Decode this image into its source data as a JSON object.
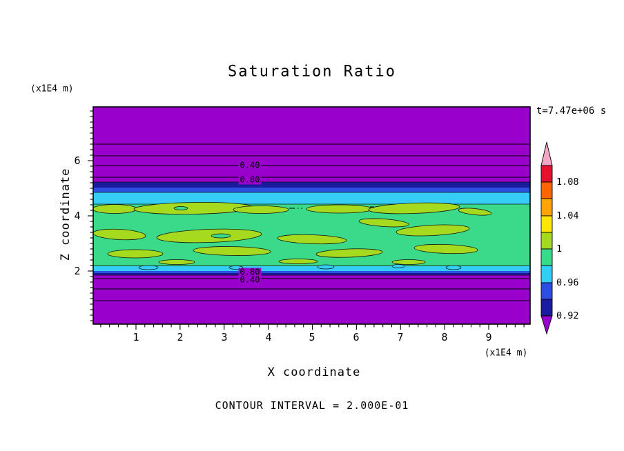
{
  "title": "Saturation Ratio",
  "time_label": "t=7.47e+06 s",
  "axes": {
    "x_label": "X coordinate",
    "y_label": "Z coordinate",
    "x_unit": "(x1E4 m)",
    "y_unit": "(x1E4 m)",
    "x_tick_labels": [
      "1",
      "2",
      "3",
      "4",
      "5",
      "6",
      "7",
      "8",
      "9"
    ],
    "y_tick_labels": [
      "6",
      "4",
      "2"
    ]
  },
  "contour": {
    "interval_label": "CONTOUR INTERVAL = 2.000E-01",
    "inline_labels": [
      "0.40",
      "0.80",
      "0.80",
      "0.40"
    ]
  },
  "colorbar": {
    "labels": [
      "1.08",
      "1.04",
      "1",
      "0.96",
      "0.92"
    ],
    "band_colors": [
      "#e8112d",
      "#ff6400",
      "#ffa500",
      "#ffe600",
      "#a6da1e",
      "#3bd98a",
      "#35cdf5",
      "#2d4fe0",
      "#1b1b9e"
    ],
    "cap_top_color": "#f2a8c4",
    "cap_bottom_color": "#9900cc"
  },
  "palette": {
    "subsaturated_purple": "#9900cc",
    "navy": "#1b1b9e",
    "blue": "#2d4fe0",
    "cyan": "#35cdf5",
    "green": "#3bd98a",
    "yellow_green": "#a6da1e"
  },
  "chart_data": {
    "type": "heatmap",
    "title": "Saturation Ratio",
    "xlabel": "X coordinate (x1E4 m)",
    "ylabel": "Z coordinate (x1E4 m)",
    "xlim": [
      0,
      10
    ],
    "ylim": [
      0,
      8
    ],
    "x_ticks": [
      1,
      2,
      3,
      4,
      5,
      6,
      7,
      8,
      9
    ],
    "y_ticks": [
      2,
      4,
      6
    ],
    "time_annotation": "t=7.47e+06 s",
    "contour_interval": 0.2,
    "colorbar_tick_values": [
      1.08,
      1.04,
      1.0,
      0.96,
      0.92
    ],
    "colorbar_range": [
      0.9,
      1.1
    ],
    "labeled_line_contours_upper_region": [
      0.4,
      0.8
    ],
    "labeled_line_contours_lower_region": [
      0.8,
      0.4
    ],
    "legend_position": "right colorbar with triangular over/under caps",
    "grid": false,
    "field_layers_top_to_bottom": [
      {
        "z_range": [
          5.2,
          8.0
        ],
        "saturation": "< 0.92",
        "render": "purple background with horizontal line contours 0.20-0.80"
      },
      {
        "z_range": [
          5.0,
          5.2
        ],
        "saturation": "0.92 - 0.96",
        "render": "thin navy and blue bands"
      },
      {
        "z_range": [
          4.4,
          5.0
        ],
        "saturation": "0.96 - 0.98",
        "render": "cyan band"
      },
      {
        "z_range": [
          2.1,
          4.4
        ],
        "saturation": "0.98 - 1.02",
        "render": "spring green field with elongated yellow-green patches (1.00-1.02) and small cyan spots near lower edge"
      },
      {
        "z_range": [
          1.85,
          2.1
        ],
        "saturation": "0.92 - 0.98",
        "render": "thin cyan, blue and navy bands"
      },
      {
        "z_range": [
          0.0,
          1.85
        ],
        "saturation": "< 0.92",
        "render": "purple background with horizontal line contours 0.80-0.20"
      }
    ]
  }
}
